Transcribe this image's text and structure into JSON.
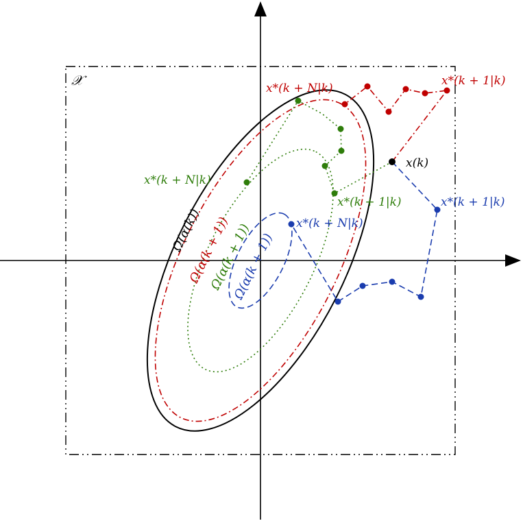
{
  "colors": {
    "axis": "#000000",
    "black": "#000000",
    "red": "#c00000",
    "green": "#2e7d0a",
    "blue": "#1a3cae"
  },
  "labels": {
    "state_set": "𝒳",
    "current_state": "x(k)",
    "red_terminal": "x*(k + N|k)",
    "red_first": "x*(k + 1|k)",
    "green_terminal": "x*(k + N|k)",
    "green_first": "x*(k + 1|k)",
    "blue_terminal": "x*(k + N|k)",
    "blue_first": "x*(k + 1|k)",
    "omega_black": "Ω(α(k))",
    "omega_red": "Ω(α(k + 1))",
    "omega_green": "Ω(α(k + 1))",
    "omega_blue": "Ω(α(k + 1))"
  },
  "icons": {
    "x_arrow": "arrow-right-icon",
    "y_arrow": "arrow-up-icon"
  }
}
